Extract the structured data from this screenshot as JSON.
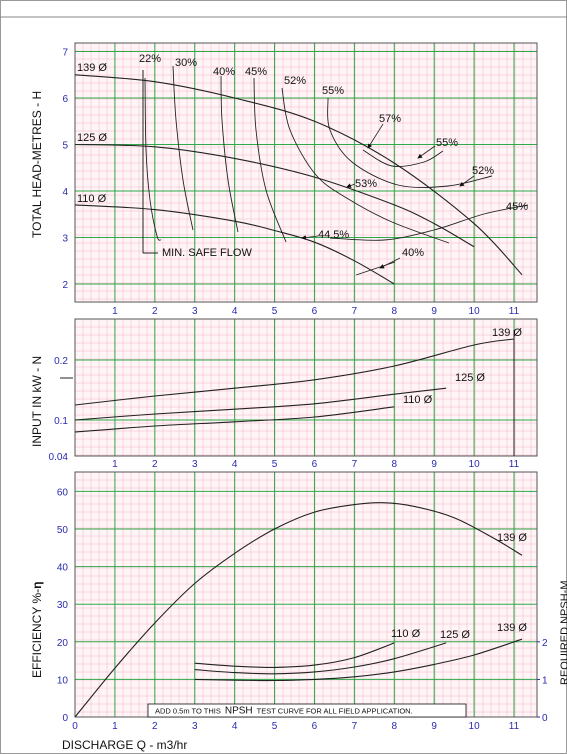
{
  "top": {
    "ylabel": "TOTAL HEAD-METRES - H",
    "yticks": [
      "2",
      "3",
      "4",
      "5",
      "6",
      "7"
    ],
    "xticks": [
      "1",
      "2",
      "3",
      "4",
      "5",
      "6",
      "7",
      "8",
      "9",
      "10",
      "11"
    ],
    "min_safe_flow_label": "MIN. SAFE FLOW",
    "impeller_labels": [
      "139 Ø",
      "125 Ø",
      "110 Ø"
    ],
    "efficiency_labels": [
      "22%",
      "30%",
      "40%",
      "45%",
      "52%",
      "55%",
      "57%",
      "55%",
      "52%",
      "45%",
      "53%",
      "44.5%",
      "40%"
    ]
  },
  "middle": {
    "ylabel": "INPUT IN kW - N",
    "yticks": [
      "0.04",
      "0.1",
      "0.2"
    ],
    "xticks": [
      "1",
      "2",
      "3",
      "4",
      "5",
      "6",
      "7",
      "8",
      "9",
      "10",
      "11"
    ],
    "series_labels": [
      "139 Ø",
      "125 Ø",
      "110 Ø"
    ]
  },
  "bottom": {
    "ylabel": "EFFICIENCY %-",
    "eta_symbol": "η",
    "yticks": [
      "0",
      "10",
      "20",
      "30",
      "40",
      "50",
      "60"
    ],
    "xticks": [
      "0",
      "1",
      "2",
      "3",
      "4",
      "5",
      "6",
      "7",
      "8",
      "9",
      "10",
      "11"
    ],
    "right_ylabel": "REQUIRED NPSH-M",
    "right_yticks": [
      "0",
      "1",
      "2"
    ],
    "series_labels": [
      "139 Ø",
      "110 Ø",
      "125 Ø",
      "139 Ø"
    ],
    "note_prefix": "ADD 0.5m TO THIS",
    "note_npsh": "NPSH",
    "note_suffix": "TEST CURVE FOR ALL FIELD APPLICATION."
  },
  "xlabel": "DISCHARGE  Q  - m3/hr",
  "chart_data": [
    {
      "type": "line",
      "ylabel": "TOTAL HEAD-METRES - H",
      "xlim": [
        0,
        11.5
      ],
      "ylim": [
        1.6,
        7.2
      ],
      "series": [
        {
          "name": "139 Ø",
          "x": [
            0,
            2,
            4,
            6,
            8,
            10,
            11.2
          ],
          "y": [
            6.5,
            6.35,
            6.0,
            5.5,
            4.6,
            3.3,
            2.2
          ]
        },
        {
          "name": "125 Ø",
          "x": [
            0,
            2,
            4,
            6,
            8,
            9,
            10
          ],
          "y": [
            5.0,
            4.95,
            4.7,
            4.3,
            3.7,
            3.3,
            2.8
          ]
        },
        {
          "name": "110 Ø",
          "x": [
            0,
            2,
            4,
            5,
            6,
            7,
            8
          ],
          "y": [
            3.7,
            3.6,
            3.35,
            3.15,
            2.9,
            2.5,
            2.0
          ]
        }
      ],
      "efficiency_contours": [
        "22%",
        "30%",
        "40%",
        "45%",
        "52%",
        "55%",
        "57%",
        "53%",
        "44.5%"
      ],
      "min_safe_flow": {
        "label": "MIN. SAFE FLOW",
        "x": 1.7
      }
    },
    {
      "type": "line",
      "ylabel": "INPUT IN kW - N",
      "xlim": [
        0,
        11.5
      ],
      "yticks": [
        0.04,
        0.1,
        0.2
      ],
      "series": [
        {
          "name": "139 Ø",
          "x": [
            0,
            2,
            4,
            6,
            8,
            10,
            11
          ],
          "y": [
            0.125,
            0.14,
            0.153,
            0.167,
            0.19,
            0.225,
            0.235
          ]
        },
        {
          "name": "125 Ø",
          "x": [
            0,
            2,
            4,
            6,
            8,
            9.3
          ],
          "y": [
            0.1,
            0.11,
            0.118,
            0.127,
            0.143,
            0.153
          ]
        },
        {
          "name": "110 Ø",
          "x": [
            0,
            2,
            4,
            6,
            8
          ],
          "y": [
            0.08,
            0.09,
            0.097,
            0.105,
            0.122
          ]
        }
      ]
    },
    {
      "type": "line",
      "ylabel": "EFFICIENCY %-η",
      "xlim": [
        0,
        11.5
      ],
      "ylim": [
        0,
        64
      ],
      "series": [
        {
          "name": "139 Ø",
          "x": [
            0,
            1,
            2,
            3,
            4,
            5,
            6,
            7,
            7.7,
            8.5,
            9.5,
            10.5,
            11.2
          ],
          "y": [
            0,
            13,
            25,
            35.5,
            43.5,
            50,
            54.5,
            56.5,
            57,
            56,
            53,
            47.5,
            43
          ]
        }
      ],
      "npsh": {
        "ylabel": "REQUIRED NPSH-M",
        "ylim": [
          0,
          2.35
        ],
        "series": [
          {
            "name": "110 Ø",
            "x": [
              3,
              4,
              5,
              6,
              7,
              8
            ],
            "y": [
              1.43,
              1.35,
              1.32,
              1.38,
              1.58,
              1.97
            ]
          },
          {
            "name": "125 Ø",
            "x": [
              3,
              4,
              5,
              6,
              7,
              8,
              9.3
            ],
            "y": [
              1.26,
              1.18,
              1.15,
              1.2,
              1.33,
              1.55,
              1.97
            ]
          },
          {
            "name": "139 Ø",
            "x": [
              3,
              4,
              5,
              6,
              7,
              8,
              9,
              10,
              11.2
            ],
            "y": [
              1.0,
              0.98,
              0.97,
              1.0,
              1.07,
              1.2,
              1.4,
              1.65,
              2.07
            ]
          }
        ]
      }
    }
  ]
}
